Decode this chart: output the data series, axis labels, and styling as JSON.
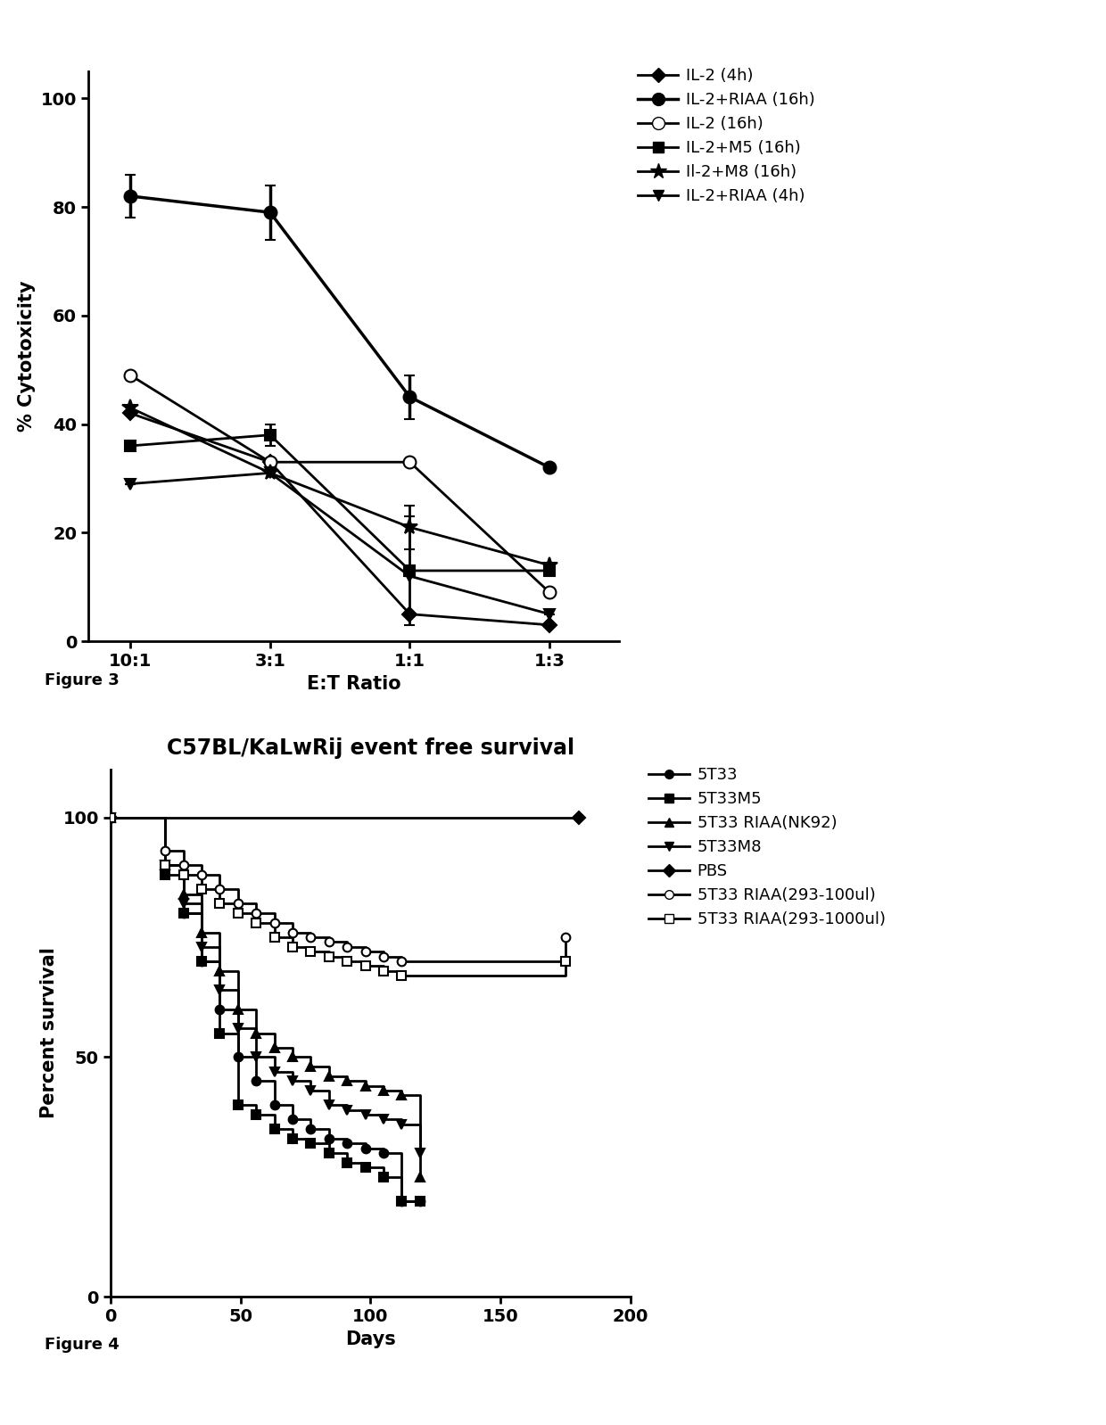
{
  "fig3": {
    "xlabel": "E:T Ratio",
    "ylabel": "% Cytotoxicity",
    "xtick_labels": [
      "10:1",
      "3:1",
      "1:1",
      "1:3"
    ],
    "xlim": [
      -0.3,
      3.5
    ],
    "ylim": [
      0,
      105
    ],
    "yticks": [
      0,
      20,
      40,
      60,
      80,
      100
    ],
    "series": [
      {
        "label": "IL-2 (4h)",
        "y": [
          42,
          33,
          5,
          3
        ],
        "yerr": [
          0,
          0,
          0,
          0
        ],
        "marker": "D",
        "markersize": 8,
        "color": "#000000",
        "linewidth": 2,
        "fillstyle": "full"
      },
      {
        "label": "IL-2+RIAA (16h)",
        "y": [
          82,
          79,
          45,
          32
        ],
        "yerr": [
          4,
          5,
          4,
          0
        ],
        "marker": "o",
        "markersize": 10,
        "color": "#000000",
        "linewidth": 2.5,
        "fillstyle": "full"
      },
      {
        "label": "IL-2 (16h)",
        "y": [
          49,
          33,
          33,
          9
        ],
        "yerr": [
          0,
          0,
          0,
          0
        ],
        "marker": "o",
        "markersize": 10,
        "color": "#000000",
        "linewidth": 2,
        "fillstyle": "none"
      },
      {
        "label": "IL-2+M5 (16h)",
        "y": [
          36,
          38,
          13,
          13
        ],
        "yerr": [
          0,
          2,
          10,
          0
        ],
        "marker": "s",
        "markersize": 9,
        "color": "#000000",
        "linewidth": 2,
        "fillstyle": "full"
      },
      {
        "label": "Il-2+M8 (16h)",
        "y": [
          43,
          31,
          21,
          14
        ],
        "yerr": [
          0,
          0,
          4,
          0
        ],
        "marker": "*",
        "markersize": 13,
        "color": "#000000",
        "linewidth": 2,
        "fillstyle": "full"
      },
      {
        "label": "IL-2+RIAA (4h)",
        "y": [
          29,
          31,
          12,
          5
        ],
        "yerr": [
          0,
          0,
          0,
          0
        ],
        "marker": "v",
        "markersize": 9,
        "color": "#000000",
        "linewidth": 2,
        "fillstyle": "full"
      }
    ]
  },
  "fig4": {
    "title": "C57BL/KaLwRij event free survival",
    "xlabel": "Days",
    "ylabel": "Percent survival",
    "xlim": [
      0,
      200
    ],
    "ylim": [
      0,
      110
    ],
    "yticks": [
      0,
      50,
      100
    ],
    "xticks": [
      0,
      50,
      100,
      150,
      200
    ],
    "series": [
      {
        "label": "5T33",
        "t": [
          0,
          21,
          28,
          35,
          42,
          49,
          56,
          63,
          70,
          77,
          84,
          91,
          98,
          105,
          112,
          119
        ],
        "s": [
          100,
          90,
          80,
          70,
          60,
          50,
          45,
          40,
          37,
          35,
          33,
          32,
          31,
          30,
          20,
          20
        ],
        "end_x": 119,
        "marker": "o",
        "markersize": 7,
        "color": "#000000",
        "linewidth": 2,
        "fillstyle": "full"
      },
      {
        "label": "5T33M5",
        "t": [
          0,
          21,
          28,
          35,
          42,
          49,
          56,
          63,
          70,
          77,
          84,
          91,
          98,
          105,
          112,
          119
        ],
        "s": [
          100,
          88,
          80,
          70,
          55,
          40,
          38,
          35,
          33,
          32,
          30,
          28,
          27,
          25,
          20,
          20
        ],
        "end_x": 119,
        "marker": "s",
        "markersize": 7,
        "color": "#000000",
        "linewidth": 2,
        "fillstyle": "full"
      },
      {
        "label": "5T33 RIAA(NK92)",
        "t": [
          0,
          21,
          28,
          35,
          42,
          49,
          56,
          63,
          70,
          77,
          84,
          91,
          98,
          105,
          112,
          119
        ],
        "s": [
          100,
          90,
          84,
          76,
          68,
          60,
          55,
          52,
          50,
          48,
          46,
          45,
          44,
          43,
          42,
          25
        ],
        "end_x": 119,
        "marker": "^",
        "markersize": 7,
        "color": "#000000",
        "linewidth": 2,
        "fillstyle": "full"
      },
      {
        "label": "5T33M8",
        "t": [
          0,
          21,
          28,
          35,
          42,
          49,
          56,
          63,
          70,
          77,
          84,
          91,
          98,
          105,
          112,
          119
        ],
        "s": [
          100,
          90,
          82,
          73,
          64,
          56,
          50,
          47,
          45,
          43,
          40,
          39,
          38,
          37,
          36,
          30
        ],
        "end_x": 119,
        "marker": "v",
        "markersize": 7,
        "color": "#000000",
        "linewidth": 2,
        "fillstyle": "full"
      },
      {
        "label": "PBS",
        "t": [
          0,
          180
        ],
        "s": [
          100,
          100
        ],
        "end_x": 180,
        "marker": "D",
        "markersize": 7,
        "color": "#000000",
        "linewidth": 2,
        "fillstyle": "full"
      },
      {
        "label": "5T33 RIAA(293-100ul)",
        "t": [
          0,
          21,
          28,
          35,
          42,
          49,
          56,
          63,
          70,
          77,
          84,
          91,
          98,
          105,
          112,
          175
        ],
        "s": [
          100,
          93,
          90,
          88,
          85,
          82,
          80,
          78,
          76,
          75,
          74,
          73,
          72,
          71,
          70,
          75
        ],
        "end_x": 175,
        "marker": "o",
        "markersize": 7,
        "color": "#000000",
        "linewidth": 2,
        "fillstyle": "none"
      },
      {
        "label": "5T33 RIAA(293-1000ul)",
        "t": [
          0,
          21,
          28,
          35,
          42,
          49,
          56,
          63,
          70,
          77,
          84,
          91,
          98,
          105,
          112,
          175
        ],
        "s": [
          100,
          90,
          88,
          85,
          82,
          80,
          78,
          75,
          73,
          72,
          71,
          70,
          69,
          68,
          67,
          70
        ],
        "end_x": 175,
        "marker": "s",
        "markersize": 7,
        "color": "#000000",
        "linewidth": 2,
        "fillstyle": "none"
      }
    ]
  },
  "fig3_label": "Figure 3",
  "fig4_label": "Figure 4"
}
